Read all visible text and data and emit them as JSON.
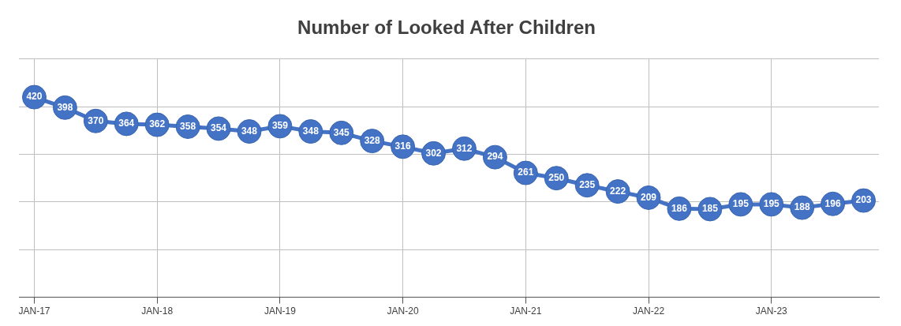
{
  "chart_data": {
    "type": "line",
    "title": "Number of Looked After Children",
    "categories": [
      "JAN-17",
      null,
      null,
      null,
      "JAN-18",
      null,
      null,
      null,
      "JAN-19",
      null,
      null,
      null,
      "JAN-20",
      null,
      null,
      null,
      "JAN-21",
      null,
      null,
      null,
      "JAN-22",
      null,
      null,
      null,
      "JAN-23",
      null,
      null,
      null
    ],
    "series": [
      {
        "color": "#4472c4",
        "values": [
          420,
          398,
          370,
          364,
          362,
          358,
          354,
          348,
          359,
          348,
          345,
          328,
          316,
          302,
          312,
          294,
          261,
          250,
          235,
          222,
          209,
          186,
          185,
          195,
          195,
          188,
          196,
          203
        ]
      }
    ],
    "ylim": [
      0,
      500
    ],
    "yticks": [
      0,
      100,
      200,
      300,
      400,
      500
    ],
    "tick_labels": "x",
    "grid": true,
    "legend": false,
    "marker": "circle",
    "line_style": "solid",
    "data_labels": true
  }
}
